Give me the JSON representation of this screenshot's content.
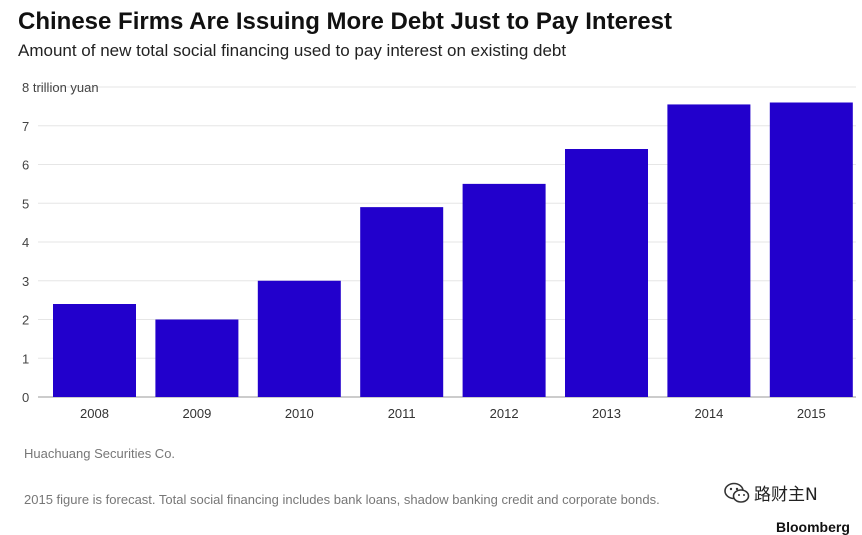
{
  "chart_data": {
    "type": "bar",
    "title": "Chinese Firms Are Issuing More Debt Just to Pay Interest",
    "subtitle": "Amount of new total social financing used to pay interest on existing debt",
    "unit_label": "8 trillion yuan",
    "categories": [
      "2008",
      "2009",
      "2010",
      "2011",
      "2012",
      "2013",
      "2014",
      "2015"
    ],
    "values": [
      2.4,
      2.0,
      3.0,
      4.9,
      5.5,
      6.4,
      7.55,
      7.6
    ],
    "ylim": [
      0,
      8
    ],
    "yticks": [
      "0",
      "1",
      "2",
      "3",
      "4",
      "5",
      "6",
      "7"
    ],
    "bar_color": "#2200cc",
    "grid": true,
    "source": "Huachuang Securities Co.",
    "note": "2015 figure is forecast. Total social financing includes bank loans, shadow banking credit and corporate bonds."
  },
  "watermark": {
    "text": "路财主N",
    "icon": "wechat-icon"
  },
  "brand": "Bloomberg"
}
